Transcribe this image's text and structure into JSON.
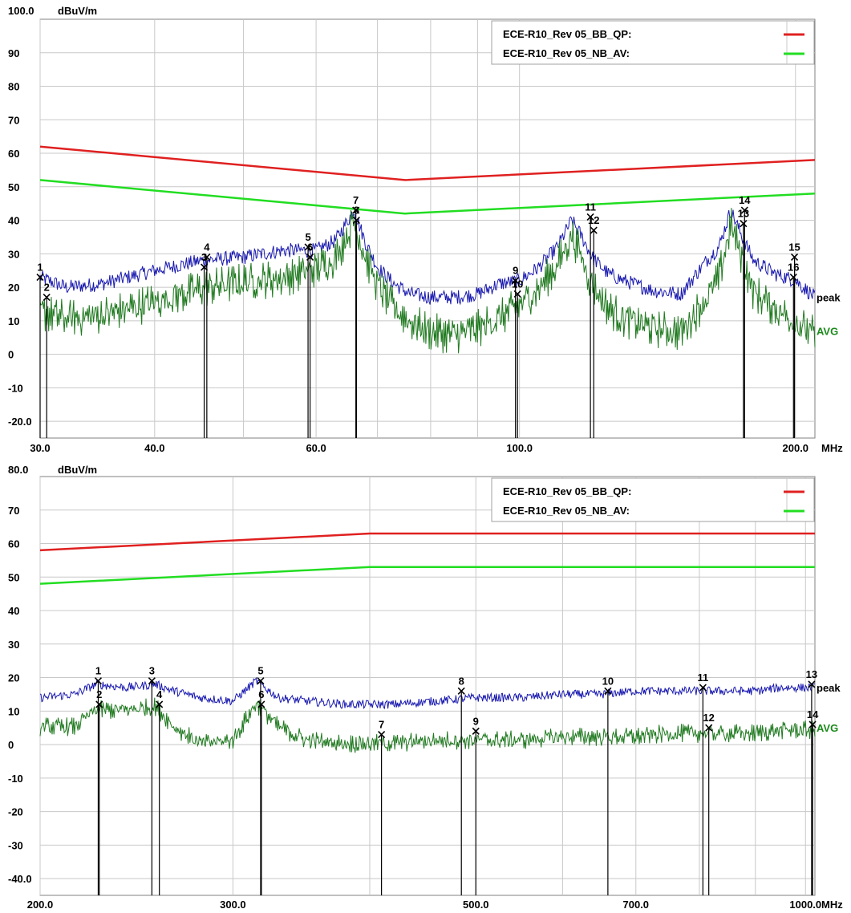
{
  "chart_data": [
    {
      "type": "line",
      "y_unit": "dBuV/m",
      "x_unit": "MHz",
      "xscale": "log",
      "xlim": [
        30,
        210
      ],
      "ylim": [
        -25,
        100
      ],
      "y_top_label": "100.0",
      "y_ticks": [
        {
          "v": 90,
          "label": "90"
        },
        {
          "v": 80,
          "label": "80"
        },
        {
          "v": 70,
          "label": "70"
        },
        {
          "v": 60,
          "label": "60"
        },
        {
          "v": 50,
          "label": "50"
        },
        {
          "v": 40,
          "label": "40"
        },
        {
          "v": 30,
          "label": "30"
        },
        {
          "v": 20,
          "label": "20"
        },
        {
          "v": 10,
          "label": "10"
        },
        {
          "v": 0,
          "label": "0"
        },
        {
          "v": -10,
          "label": "-10"
        },
        {
          "v": -20,
          "label": "-20.0"
        }
      ],
      "x_ticks": [
        {
          "v": 30,
          "label": "30.0"
        },
        {
          "v": 40,
          "label": "40.0"
        },
        {
          "v": 60,
          "label": "60.0"
        },
        {
          "v": 100,
          "label": "100.0"
        },
        {
          "v": 200,
          "label": "200.0"
        }
      ],
      "x_grid": [
        30,
        40,
        50,
        60,
        70,
        80,
        90,
        100,
        200
      ],
      "legend": [
        {
          "name": "ECE-R10_Rev 05_BB_QP:",
          "color": "#e02020"
        },
        {
          "name": "ECE-R10_Rev 05_NB_AV:",
          "color": "#22dd22"
        }
      ],
      "limit_lines": [
        {
          "name": "ECE-R10_Rev 05_BB_QP:",
          "color": "#e02020",
          "x": [
            30,
            75,
            210
          ],
          "y": [
            62,
            52,
            58
          ]
        },
        {
          "name": "ECE-R10_Rev 05_NB_AV:",
          "color": "#22dd22",
          "x": [
            30,
            75,
            210
          ],
          "y": [
            52,
            42,
            48
          ]
        }
      ],
      "series": [
        {
          "label": "peak",
          "color": "#1a1ab0",
          "x": [
            30,
            32,
            35,
            40,
            45,
            50,
            55,
            60,
            63,
            66,
            68,
            70,
            73,
            76,
            80,
            85,
            90,
            95,
            100,
            105,
            110,
            114,
            117,
            120,
            125,
            130,
            140,
            150,
            160,
            165,
            170,
            175,
            180,
            190,
            200,
            210
          ],
          "y": [
            23,
            20,
            21,
            25,
            28,
            29,
            31,
            31,
            34,
            43,
            33,
            26,
            21,
            18,
            17,
            17,
            18,
            21,
            22,
            26,
            32,
            40,
            35,
            29,
            24,
            22,
            19,
            18,
            28,
            32,
            43,
            35,
            28,
            24,
            22,
            17
          ]
        },
        {
          "label": "AVG",
          "color": "#207a20",
          "x": [
            30,
            32,
            35,
            40,
            45,
            50,
            55,
            60,
            63,
            66,
            68,
            70,
            73,
            76,
            80,
            85,
            90,
            95,
            100,
            105,
            110,
            114,
            117,
            120,
            125,
            130,
            140,
            150,
            160,
            165,
            170,
            175,
            180,
            190,
            200,
            210
          ],
          "y": [
            14,
            12,
            13,
            17,
            21,
            23,
            24,
            27,
            30,
            41,
            30,
            22,
            15,
            11,
            8,
            7,
            9,
            12,
            16,
            21,
            28,
            37,
            30,
            22,
            15,
            12,
            9,
            8,
            18,
            24,
            40,
            30,
            20,
            15,
            11,
            7
          ]
        }
      ],
      "markers": [
        {
          "n": "1",
          "x": 30.0,
          "y": 23
        },
        {
          "n": "2",
          "x": 30.5,
          "y": 17
        },
        {
          "n": "3",
          "x": 45.3,
          "y": 26
        },
        {
          "n": "4",
          "x": 45.6,
          "y": 29
        },
        {
          "n": "5",
          "x": 58.8,
          "y": 32
        },
        {
          "n": "6",
          "x": 59.1,
          "y": 29
        },
        {
          "n": "7",
          "x": 66.3,
          "y": 43
        },
        {
          "n": "8",
          "x": 66.4,
          "y": 40
        },
        {
          "n": "9",
          "x": 99.0,
          "y": 22
        },
        {
          "n": "10",
          "x": 99.5,
          "y": 18
        },
        {
          "n": "11",
          "x": 119.5,
          "y": 41
        },
        {
          "n": "12",
          "x": 120.5,
          "y": 37
        },
        {
          "n": "13",
          "x": 175.5,
          "y": 39
        },
        {
          "n": "14",
          "x": 176.0,
          "y": 43
        },
        {
          "n": "15",
          "x": 199.5,
          "y": 29
        },
        {
          "n": "16",
          "x": 199.0,
          "y": 23
        }
      ]
    },
    {
      "type": "line",
      "y_unit": "dBuV/m",
      "x_unit": "MHz",
      "xscale": "log",
      "xlim": [
        200,
        1020
      ],
      "ylim": [
        -45,
        80
      ],
      "y_top_label": "80.0",
      "y_ticks": [
        {
          "v": 70,
          "label": "70"
        },
        {
          "v": 60,
          "label": "60"
        },
        {
          "v": 50,
          "label": "50"
        },
        {
          "v": 40,
          "label": "40"
        },
        {
          "v": 30,
          "label": "30"
        },
        {
          "v": 20,
          "label": "20"
        },
        {
          "v": 10,
          "label": "10"
        },
        {
          "v": 0,
          "label": "0"
        },
        {
          "v": -10,
          "label": "-10"
        },
        {
          "v": -20,
          "label": "-20"
        },
        {
          "v": -30,
          "label": "-30"
        },
        {
          "v": -40,
          "label": "-40.0"
        }
      ],
      "x_ticks": [
        {
          "v": 200,
          "label": "200.0"
        },
        {
          "v": 300,
          "label": "300.0"
        },
        {
          "v": 500,
          "label": "500.0"
        },
        {
          "v": 700,
          "label": "700.0"
        },
        {
          "v": 1000,
          "label": "1000.0"
        }
      ],
      "x_grid": [
        200,
        300,
        400,
        500,
        600,
        700,
        800,
        900,
        1000
      ],
      "legend": [
        {
          "name": "ECE-R10_Rev 05_BB_QP:",
          "color": "#e02020"
        },
        {
          "name": "ECE-R10_Rev 05_NB_AV:",
          "color": "#22dd22"
        }
      ],
      "limit_lines": [
        {
          "name": "ECE-R10_Rev 05_BB_QP:",
          "color": "#e02020",
          "x": [
            200,
            400,
            1020
          ],
          "y": [
            58,
            63,
            63
          ]
        },
        {
          "name": "ECE-R10_Rev 05_NB_AV:",
          "color": "#22dd22",
          "x": [
            200,
            400,
            1020
          ],
          "y": [
            48,
            53,
            53
          ]
        }
      ],
      "series": [
        {
          "label": "peak",
          "color": "#1a1ab0",
          "x": [
            200,
            215,
            225,
            240,
            255,
            265,
            280,
            300,
            315,
            330,
            350,
            380,
            420,
            460,
            500,
            550,
            600,
            650,
            700,
            750,
            800,
            850,
            900,
            950,
            1000,
            1020
          ],
          "y": [
            14,
            15,
            18,
            17,
            18,
            16,
            14,
            13,
            19,
            14,
            13,
            12,
            12,
            13,
            14,
            14,
            15,
            15,
            16,
            16,
            16,
            16,
            16,
            17,
            17,
            17
          ]
        },
        {
          "label": "AVG",
          "color": "#207a20",
          "x": [
            200,
            215,
            225,
            240,
            255,
            265,
            280,
            300,
            315,
            330,
            350,
            380,
            420,
            460,
            500,
            550,
            600,
            650,
            700,
            750,
            800,
            850,
            900,
            950,
            1000,
            1020
          ],
          "y": [
            6,
            6,
            11,
            11,
            12,
            6,
            1,
            2,
            13,
            6,
            2,
            1,
            1,
            2,
            2,
            2,
            3,
            3,
            3,
            4,
            4,
            4,
            4,
            5,
            5,
            5
          ]
        }
      ],
      "markers": [
        {
          "n": "1",
          "x": 226,
          "y": 19
        },
        {
          "n": "2",
          "x": 226.5,
          "y": 12
        },
        {
          "n": "3",
          "x": 253,
          "y": 19
        },
        {
          "n": "4",
          "x": 257,
          "y": 12
        },
        {
          "n": "5",
          "x": 318,
          "y": 19
        },
        {
          "n": "6",
          "x": 318.5,
          "y": 12
        },
        {
          "n": "7",
          "x": 410,
          "y": 3
        },
        {
          "n": "8",
          "x": 485,
          "y": 16
        },
        {
          "n": "9",
          "x": 500,
          "y": 4
        },
        {
          "n": "10",
          "x": 660,
          "y": 16
        },
        {
          "n": "11",
          "x": 806,
          "y": 17
        },
        {
          "n": "12",
          "x": 816,
          "y": 5
        },
        {
          "n": "13",
          "x": 1013,
          "y": 18
        },
        {
          "n": "14",
          "x": 1015,
          "y": 6
        }
      ]
    }
  ]
}
